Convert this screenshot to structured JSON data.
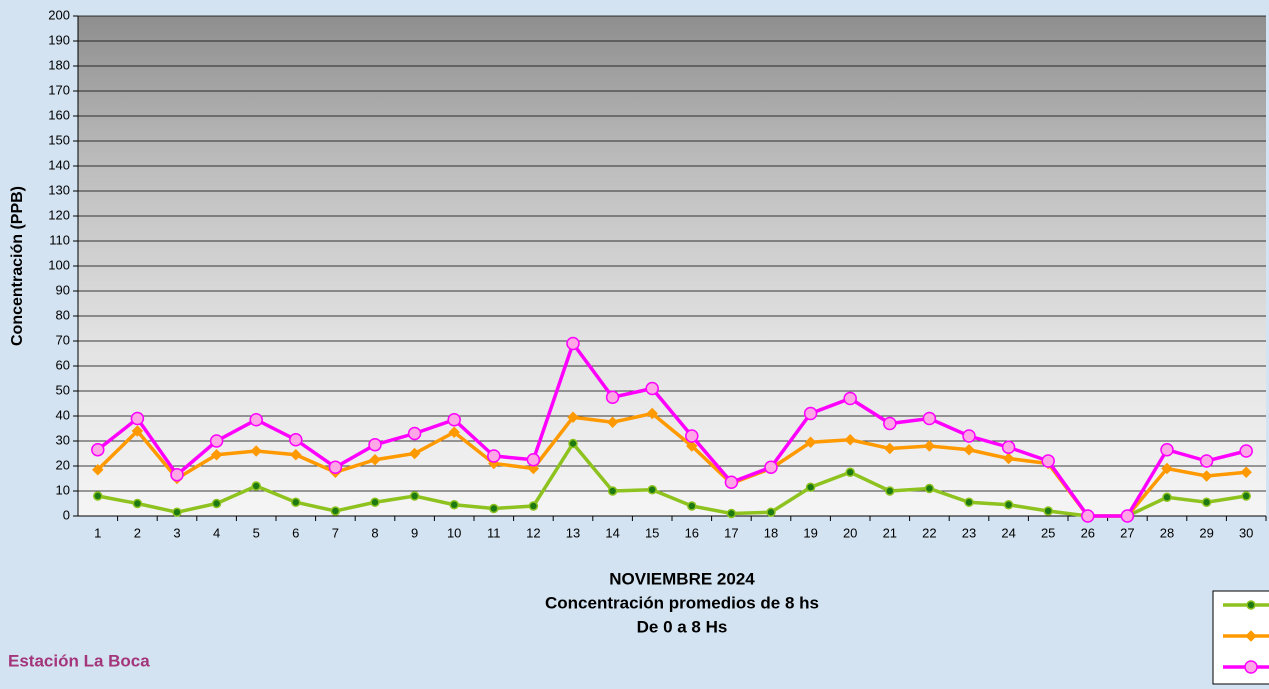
{
  "chart_data": {
    "type": "line",
    "title": "NOVIEMBRE 2024",
    "subtitle": [
      "Concentración promedios de 8 hs",
      "De 0 a 8 Hs"
    ],
    "station": "Estación La Boca",
    "y_label": "Concentración  (PPB)",
    "categories": [
      "1",
      "2",
      "3",
      "4",
      "5",
      "6",
      "7",
      "8",
      "9",
      "10",
      "11",
      "12",
      "13",
      "14",
      "15",
      "16",
      "17",
      "18",
      "19",
      "20",
      "21",
      "22",
      "23",
      "24",
      "25",
      "26",
      "27",
      "28",
      "29",
      "30"
    ],
    "series": [
      {
        "color": "#8dc21f",
        "marker": "circle",
        "values": [
          8,
          5,
          1.5,
          5,
          12,
          5.5,
          2,
          5.5,
          8,
          4.5,
          3,
          4,
          29,
          10,
          10.5,
          4,
          1,
          1.5,
          11.5,
          17.5,
          10,
          11,
          5.5,
          4.5,
          2,
          0,
          0,
          7.5,
          5.5,
          8
        ]
      },
      {
        "color": "#ff9900",
        "marker": "diamond",
        "values": [
          18.5,
          34,
          15,
          24.5,
          26,
          24.5,
          17.5,
          22.5,
          25,
          33.5,
          21,
          19,
          39.5,
          37.5,
          41,
          28,
          13,
          19,
          29.5,
          30.5,
          27,
          28,
          26.5,
          23,
          21,
          0,
          0,
          19,
          16,
          17.5
        ]
      },
      {
        "color": "#ff00ff",
        "marker": "circle",
        "values": [
          26.5,
          39,
          16.5,
          30,
          38.5,
          30.5,
          19.5,
          28.5,
          33,
          38.5,
          24,
          22.5,
          69,
          47.5,
          51,
          32,
          13.5,
          19.5,
          41,
          47,
          37,
          39,
          32,
          27.5,
          22,
          0,
          0,
          26.5,
          22,
          26
        ]
      }
    ],
    "ylim": [
      0,
      200
    ],
    "yticks": [
      0,
      10,
      20,
      30,
      40,
      50,
      60,
      70,
      80,
      90,
      100,
      110,
      120,
      130,
      140,
      150,
      160,
      170,
      180,
      190,
      200
    ],
    "grid": true,
    "legend": "bottom-right"
  }
}
